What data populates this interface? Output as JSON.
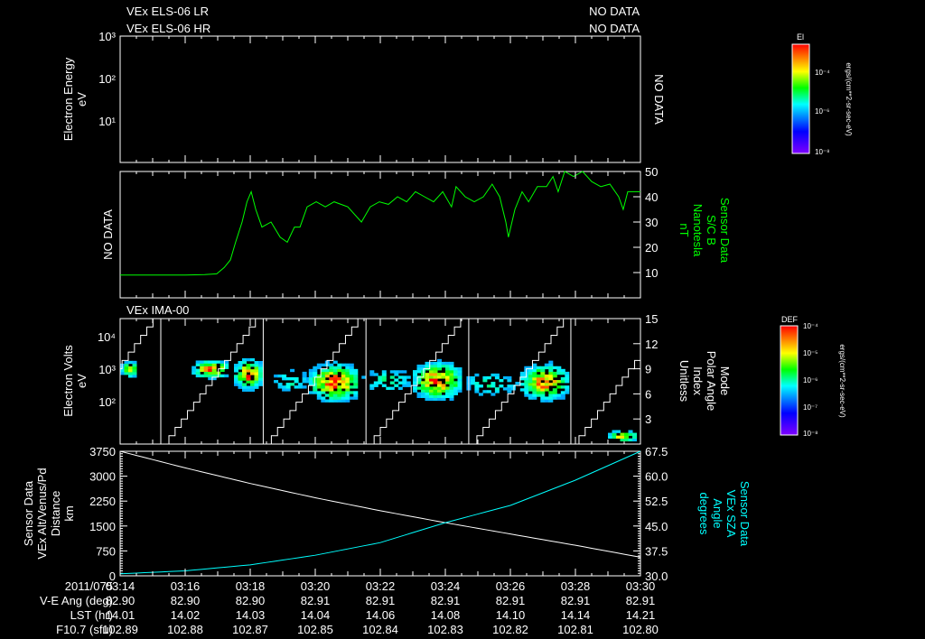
{
  "header": {
    "title1": "VEx ELS-06 LR",
    "status1": "NO DATA",
    "title2": "VEx ELS-06 HR",
    "status2": "NO DATA"
  },
  "colors": {
    "b_field": "#00ff00",
    "sza": "#00ffff",
    "altitude": "#ffffff"
  },
  "colorbar_el": {
    "title": "El",
    "ticks": [
      "10⁻⁴",
      "10⁻⁶",
      "10⁻⁸"
    ],
    "units": "ergs/(cm**2-sr-sec-eV)"
  },
  "colorbar_def": {
    "title": "DEF",
    "ticks": [
      "10⁻⁴",
      "10⁻⁵",
      "10⁻⁶",
      "10⁻⁷",
      "10⁻⁸"
    ],
    "units": "ergs/(cm**2-sr-sec-eV)"
  },
  "time_axis": {
    "date": "2011/075",
    "ticks": [
      "03:14",
      "03:16",
      "03:18",
      "03:20",
      "03:22",
      "03:24",
      "03:26",
      "03:28",
      "03:30"
    ]
  },
  "ephemeris": [
    {
      "label": "V-E Ang (deg)",
      "values": [
        "82.90",
        "82.90",
        "82.90",
        "82.91",
        "82.91",
        "82.91",
        "82.91",
        "82.91",
        "82.91"
      ]
    },
    {
      "label": "LST (hr)",
      "values": [
        "14.01",
        "14.02",
        "14.03",
        "14.04",
        "14.06",
        "14.08",
        "14.10",
        "14.14",
        "14.21"
      ]
    },
    {
      "label": "F10.7 (sfu)",
      "values": [
        "102.89",
        "102.88",
        "102.87",
        "102.85",
        "102.84",
        "102.83",
        "102.82",
        "102.81",
        "102.80"
      ]
    }
  ],
  "chart_data": [
    {
      "type": "heatmap",
      "name": "els",
      "ylabel": [
        "Electron Energy",
        "eV"
      ],
      "yticks": [
        "10³",
        "10²",
        "10¹"
      ],
      "ylim_log10": [
        0,
        3
      ],
      "right_label": "NO DATA",
      "values": []
    },
    {
      "type": "line",
      "name": "mag",
      "left_label": "NO DATA",
      "ylabel_right": [
        "Sensor Data",
        "S/C B",
        "Nanotesla",
        "nT"
      ],
      "ylim": [
        0,
        50
      ],
      "yticks": [
        "50",
        "40",
        "30",
        "20",
        "10"
      ],
      "x_minutes": [
        0,
        1,
        2,
        2.6,
        2.97,
        3.2,
        3.39,
        3.55,
        3.75,
        3.9,
        4.03,
        4.17,
        4.36,
        4.64,
        4.92,
        5.14,
        5.36,
        5.53,
        5.75,
        6.03,
        6.31,
        6.58,
        7.0,
        7.42,
        7.69,
        7.97,
        8.25,
        8.53,
        8.81,
        9.08,
        9.36,
        9.64,
        9.92,
        10.19,
        10.33,
        10.61,
        10.89,
        11.17,
        11.44,
        11.67,
        11.86,
        11.94,
        12.14,
        12.36,
        12.56,
        12.83,
        13.11,
        13.31,
        13.47,
        13.67,
        13.94,
        14.22,
        14.5,
        14.78,
        15.06,
        15.33,
        15.47,
        15.61,
        16
      ],
      "values": [
        9,
        9,
        9,
        9.2,
        9.5,
        12,
        15,
        22,
        30,
        38,
        42,
        35,
        28,
        30,
        24,
        22,
        28,
        28,
        36,
        38,
        36,
        38,
        36,
        30,
        36,
        38,
        37,
        40,
        38,
        42,
        40,
        38,
        42,
        36,
        44,
        40,
        38,
        40,
        45,
        40,
        30,
        24,
        35,
        42,
        38,
        44,
        44,
        48,
        42,
        50,
        48,
        50,
        46,
        44,
        45,
        40,
        35,
        42,
        42
      ]
    },
    {
      "type": "heatmap",
      "name": "ima",
      "title": "VEx IMA-00",
      "ylabel": [
        "Electron Volts",
        "eV"
      ],
      "yticks": [
        "10⁴",
        "10³",
        "10²"
      ],
      "ylim_log10": [
        0.69,
        4.55
      ],
      "ylabel_right": [
        "Mode",
        "Polar Angle",
        "Index",
        "Unitless"
      ],
      "yticks_right": [
        "15",
        "12",
        "9",
        "6",
        "3"
      ],
      "ylim_right": [
        0,
        15
      ],
      "mode_change_minutes": [
        1.25,
        4.4,
        7.56,
        10.72,
        13.86
      ],
      "blobs": [
        {
          "t": [
            0,
            0.5
          ],
          "center": 2.95,
          "spread": 0.22,
          "peak": 0.75
        },
        {
          "t": [
            2.2,
            3.3
          ],
          "center": 2.95,
          "spread": 0.25,
          "peak": 0.9
        },
        {
          "t": [
            3.5,
            4.3
          ],
          "center": 2.8,
          "spread": 0.4,
          "peak": 1.0
        },
        {
          "t": [
            4.6,
            5.8
          ],
          "center": 2.6,
          "spread": 0.35,
          "peak": 0.35
        },
        {
          "t": [
            5.8,
            7.3
          ],
          "center": 2.55,
          "spread": 0.5,
          "peak": 1.0
        },
        {
          "t": [
            7.3,
            9.0
          ],
          "center": 2.6,
          "spread": 0.4,
          "peak": 0.35
        },
        {
          "t": [
            9.0,
            10.4
          ],
          "center": 2.6,
          "spread": 0.5,
          "peak": 1.0
        },
        {
          "t": [
            10.4,
            12.3
          ],
          "center": 2.5,
          "spread": 0.4,
          "peak": 0.35
        },
        {
          "t": [
            12.3,
            13.7
          ],
          "center": 2.55,
          "spread": 0.5,
          "peak": 0.9
        },
        {
          "t": [
            15.0,
            15.8
          ],
          "center": 0.9,
          "spread": 0.15,
          "peak": 0.9
        }
      ]
    },
    {
      "type": "line",
      "name": "orbit",
      "ylabel": [
        "Sensor Data",
        "VEx Alt/Venus/Pd",
        "Distance",
        "km"
      ],
      "ylim": [
        0,
        3750
      ],
      "yticks": [
        "3750",
        "3000",
        "2250",
        "1500",
        "750",
        "0"
      ],
      "ylabel_right": [
        "Sensor Data",
        "VEx SZA",
        "Angle",
        "degrees"
      ],
      "ylim_right": [
        30,
        67.5
      ],
      "yticks_right": [
        "67.5",
        "60.0",
        "52.5",
        "45.0",
        "37.5",
        "30.0"
      ],
      "x_minutes": [
        0,
        2,
        4,
        6,
        8,
        10,
        12,
        14,
        16
      ],
      "altitude_km": [
        3750,
        3250,
        2780,
        2350,
        1960,
        1600,
        1260,
        920,
        560
      ],
      "sza_deg": [
        30.6,
        31.5,
        33.3,
        36.2,
        40.0,
        46.0,
        51.2,
        58.8,
        67.5
      ]
    }
  ]
}
